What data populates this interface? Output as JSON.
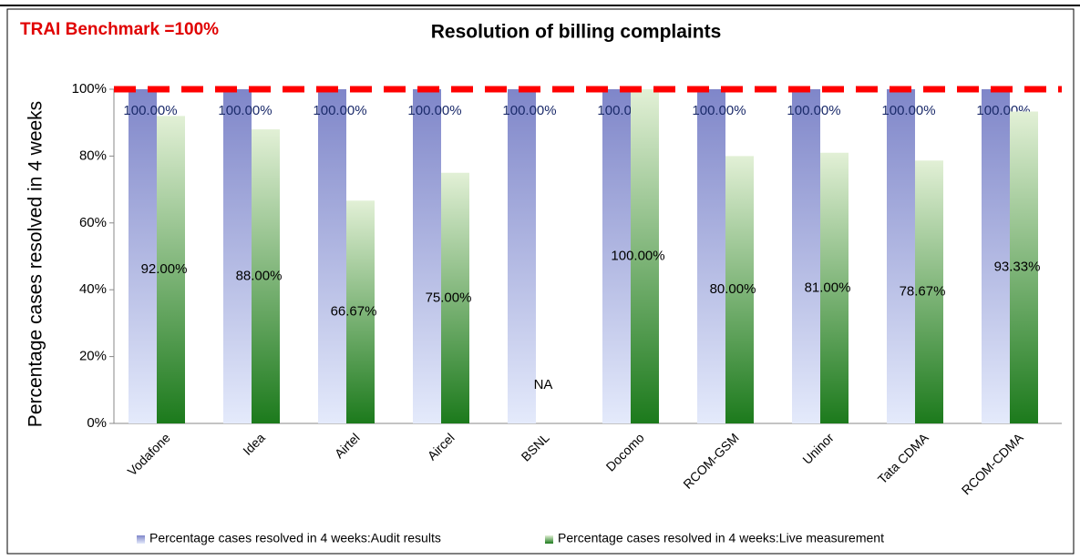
{
  "chart_data": {
    "type": "bar",
    "title": "Resolution of billing complaints",
    "annotation": "TRAI Benchmark =100%",
    "benchmark": 100,
    "y_label": "Percentage cases resolved in 4 weeks",
    "categories": [
      "Vodafone",
      "Idea",
      "Airtel",
      "Aircel",
      "BSNL",
      "Docomo",
      "RCOM-GSM",
      "Uninor",
      "Tata CDMA",
      "RCOM-CDMA"
    ],
    "series": [
      {
        "name": "Percentage cases resolved in 4 weeks:Audit results",
        "color": "#7f86c9",
        "values": [
          100,
          100,
          100,
          100,
          100,
          100,
          100,
          100,
          100,
          100
        ],
        "value_labels": [
          "100.00%",
          "100.00%",
          "100.00%",
          "100.00%",
          "100.00%",
          "100.00%",
          "100.00%",
          "100.00%",
          "100.00%",
          "100.00%"
        ]
      },
      {
        "name": "Percentage cases resolved in 4 weeks:Live measurement",
        "color": "#1c7a1c",
        "values": [
          92,
          88,
          66.67,
          75,
          null,
          100,
          80,
          81,
          78.67,
          93.33
        ],
        "value_labels": [
          "92.00%",
          "88.00%",
          "66.67%",
          "75.00%",
          "NA",
          "100.00%",
          "80.00%",
          "81.00%",
          "78.67%",
          "93.33%"
        ]
      }
    ],
    "ylim": [
      0,
      100
    ],
    "yticks": [
      {
        "value": 0,
        "label": "0%"
      },
      {
        "value": 20,
        "label": "20%"
      },
      {
        "value": 40,
        "label": "40%"
      },
      {
        "value": 60,
        "label": "60%"
      },
      {
        "value": 80,
        "label": "80%"
      },
      {
        "value": 100,
        "label": "100%"
      }
    ],
    "legend": "bottom"
  }
}
